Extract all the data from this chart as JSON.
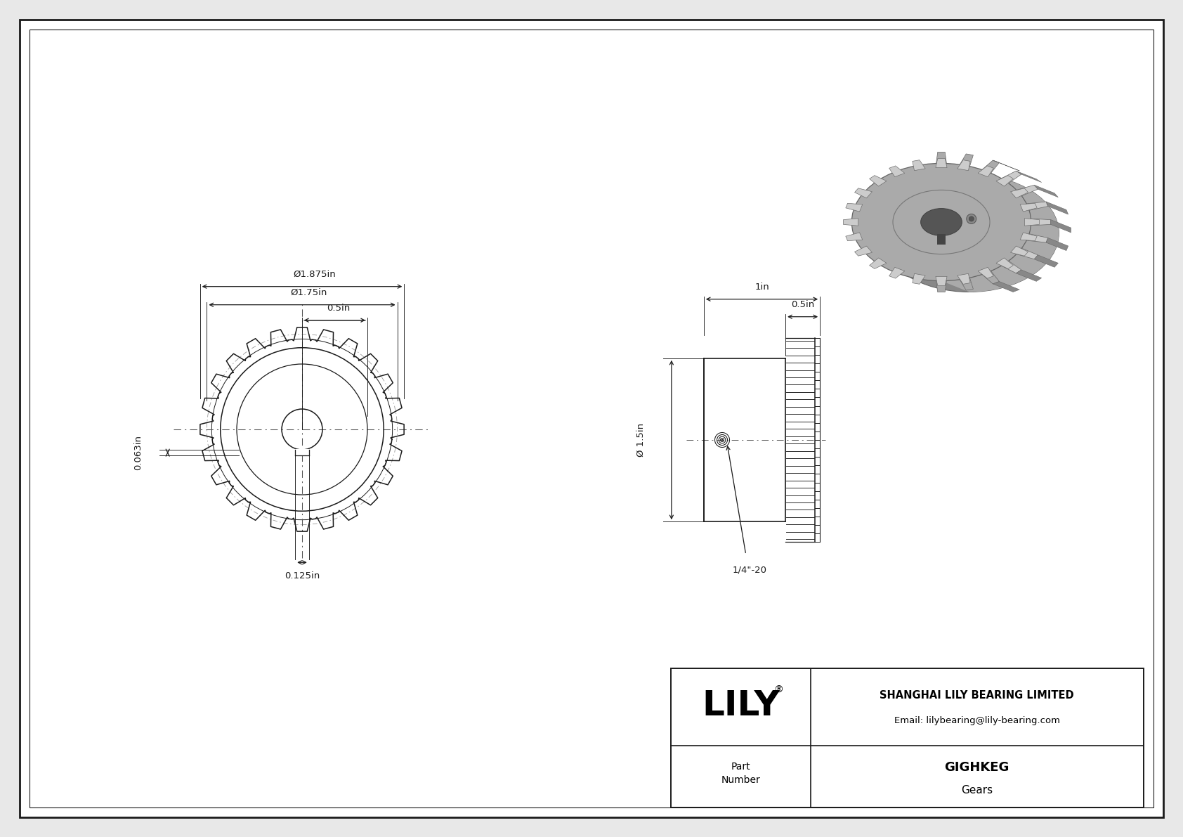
{
  "bg_color": "#e8e8e8",
  "drawing_bg": "#ffffff",
  "line_color": "#1a1a1a",
  "dim_color": "#1a1a1a",
  "center_line_color": "#555555",
  "gear3d_color": "#aaaaaa",
  "gear3d_dark": "#888888",
  "gear3d_light": "#cccccc",
  "company": "SHANGHAI LILY BEARING LIMITED",
  "email": "Email: lilybearing@lily-bearing.com",
  "part_number": "GIGHKEG",
  "category": "Gears",
  "annotations": {
    "dim1": "Ø1.875in",
    "dim2": "Ø1.75in",
    "dim3": "0.5in",
    "dim4": "1in",
    "dim5": "0.5in",
    "dim6": "Ø 1.5in",
    "dim7": "0.063in",
    "dim8": "0.125in",
    "dim9": "1/4\"-20"
  },
  "num_teeth": 24,
  "scale": 1.55
}
